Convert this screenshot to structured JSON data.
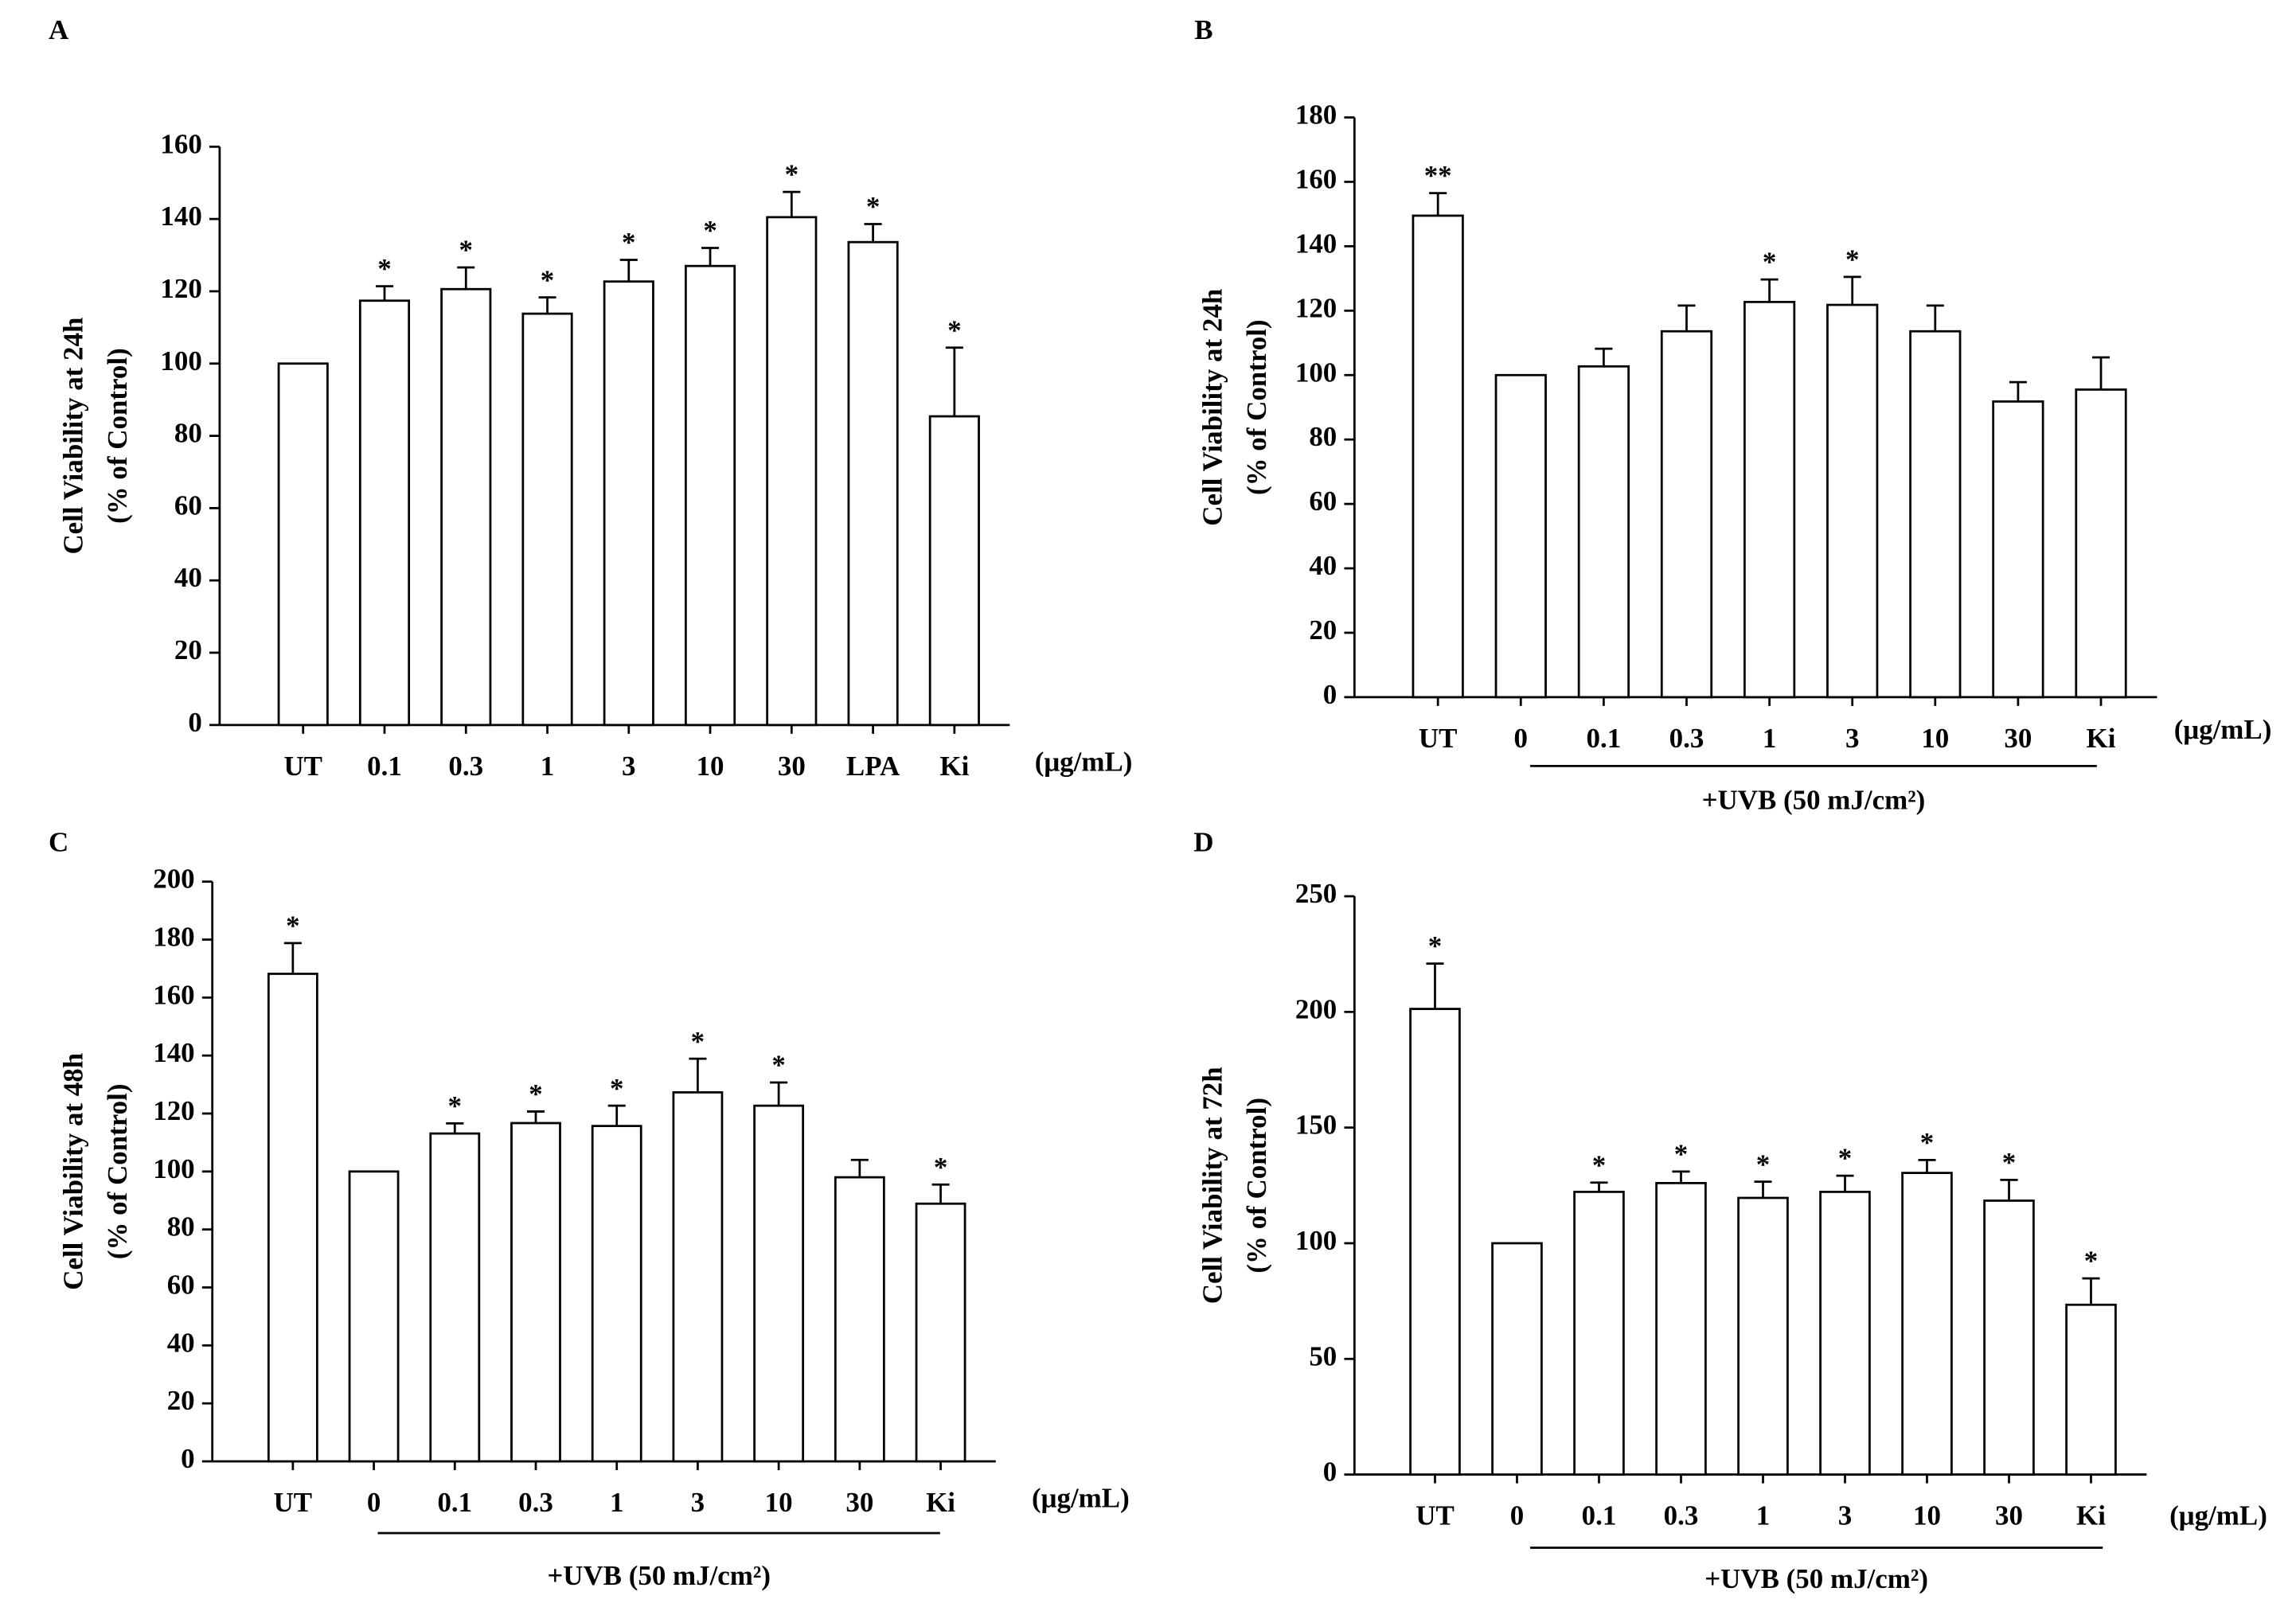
{
  "chart_data": [
    {
      "type": "bar",
      "panel_label": "A",
      "y_label": [
        "Cell Viability at 24h",
        "(% of Control)"
      ],
      "categories": [
        "UT",
        "0.1",
        "0.3",
        "1",
        "3",
        "10",
        "30",
        "LPA",
        "Ki"
      ],
      "values": [
        100,
        117.4,
        120.6,
        113.8,
        122.7,
        127,
        140.5,
        133.6,
        85.4
      ],
      "errors": [
        0,
        4,
        6,
        4.5,
        6,
        5,
        7,
        5,
        19
      ],
      "annotations": [
        null,
        "*",
        "*",
        "*",
        "*",
        "*",
        "*",
        "*",
        "*"
      ],
      "unit_label": "(μg/mL)",
      "ylim": [
        0,
        160
      ],
      "yticks": [
        0,
        20,
        40,
        60,
        80,
        100,
        120,
        140,
        160
      ],
      "color": "#ffffff"
    },
    {
      "type": "bar",
      "panel_label": "B",
      "y_label": [
        "Cell Viability at 24h",
        "(% of Control)"
      ],
      "categories": [
        "UT",
        "0",
        "0.1",
        "0.3",
        "1",
        "3",
        "10",
        "30",
        "Ki"
      ],
      "values": [
        149.5,
        100,
        102.7,
        113.6,
        122.7,
        121.8,
        113.6,
        91.8,
        95.5
      ],
      "errors": [
        7,
        0,
        5.5,
        8,
        7,
        8.7,
        8,
        6,
        10
      ],
      "annotations": [
        "**",
        null,
        null,
        null,
        "*",
        "*",
        null,
        null,
        null
      ],
      "unit_label": "(μg/mL)",
      "group_label": "+UVB (50 mJ/cm²)",
      "ylim": [
        0,
        180
      ],
      "yticks": [
        0,
        20,
        40,
        60,
        80,
        100,
        120,
        140,
        160,
        180
      ],
      "color": "#ffffff"
    },
    {
      "type": "bar",
      "panel_label": "C",
      "y_label": [
        "Cell Viability at 48h",
        "(% of Control)"
      ],
      "categories": [
        "UT",
        "0",
        "0.1",
        "0.3",
        "1",
        "3",
        "10",
        "30",
        "Ki"
      ],
      "values": [
        168.2,
        100,
        113.1,
        116.7,
        115.7,
        127.3,
        122.7,
        98,
        88.9
      ],
      "errors": [
        10.6,
        0,
        3.5,
        4,
        7,
        11.6,
        8,
        6,
        6.6
      ],
      "annotations": [
        "*",
        null,
        "*",
        "*",
        "*",
        "*",
        "*",
        null,
        "*"
      ],
      "unit_label": "(μg/mL)",
      "group_label": "+UVB (50 mJ/cm²)",
      "ylim": [
        0,
        200
      ],
      "yticks": [
        0,
        20,
        40,
        60,
        80,
        100,
        120,
        140,
        160,
        180,
        200
      ],
      "color": "#ffffff"
    },
    {
      "type": "bar",
      "panel_label": "D",
      "y_label": [
        "Cell Viability at 72h",
        "(% of Control)"
      ],
      "categories": [
        "UT",
        "0",
        "0.1",
        "0.3",
        "1",
        "3",
        "10",
        "30",
        "Ki"
      ],
      "values": [
        201.3,
        100,
        122.2,
        126,
        119.6,
        122.2,
        130.4,
        118.4,
        73.4
      ],
      "errors": [
        19.6,
        0,
        4,
        5,
        7,
        7,
        5.6,
        9,
        11.4
      ],
      "annotations": [
        "*",
        null,
        "*",
        "*",
        "*",
        "*",
        "*",
        "*",
        "*"
      ],
      "unit_label": "(μg/mL)",
      "group_label": "+UVB (50 mJ/cm²)",
      "ylim": [
        0,
        250
      ],
      "yticks": [
        0,
        50,
        100,
        150,
        200,
        250
      ],
      "color": "#ffffff"
    }
  ]
}
